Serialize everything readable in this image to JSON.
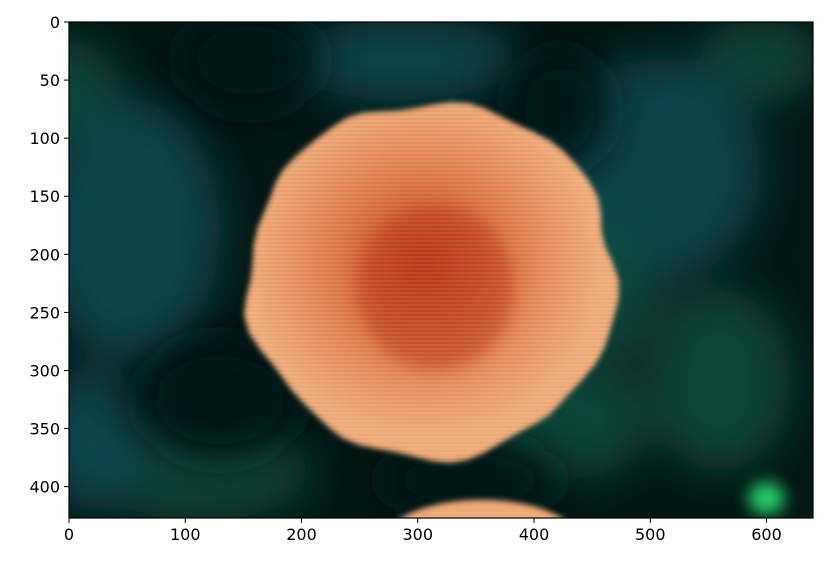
{
  "chart_data": {
    "type": "image",
    "title": "",
    "xlabel": "",
    "ylabel": "",
    "xlim": [
      0,
      640
    ],
    "ylim": [
      427,
      0
    ],
    "x_ticks": [
      0,
      100,
      200,
      300,
      400,
      500,
      600
    ],
    "y_ticks": [
      0,
      50,
      100,
      150,
      200,
      250,
      300,
      350,
      400
    ],
    "grid": false,
    "image": {
      "subject": "orange-flower",
      "background": "blurred-green-leaves",
      "colors": {
        "flower_outer": "#eeaa78",
        "flower_mid": "#dd7a48",
        "flower_center": "#b83712",
        "bg_dark": "#041815",
        "bg_teal": "#0e4a52",
        "bg_green": "#0b4a3e",
        "bright_green": "#28d36a"
      }
    }
  }
}
